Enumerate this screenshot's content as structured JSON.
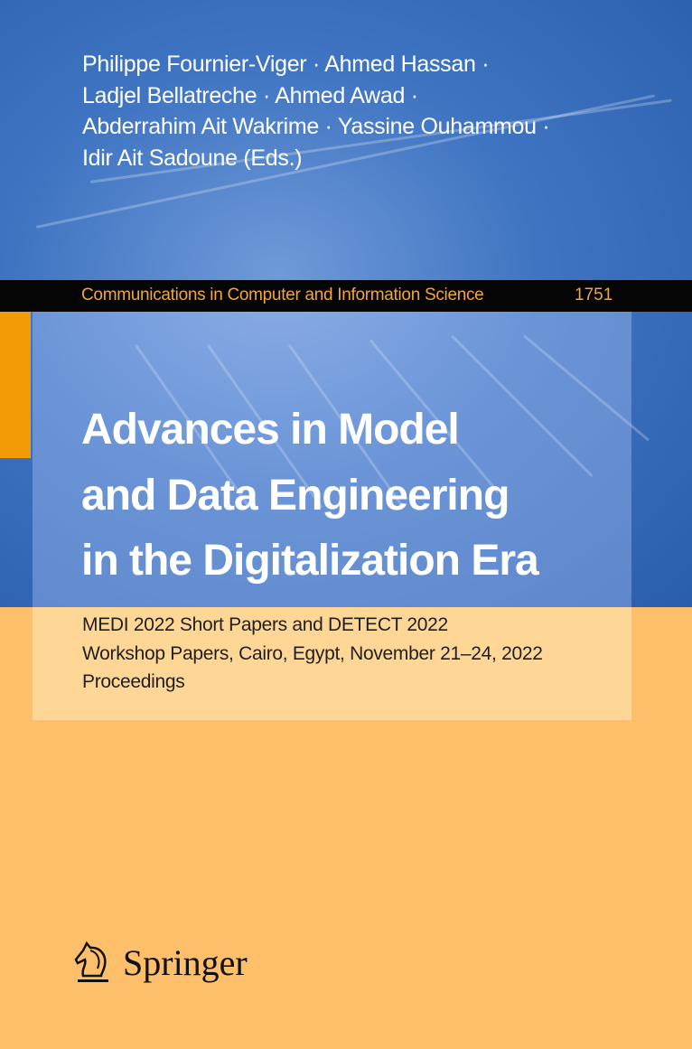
{
  "authors": [
    "Philippe Fournier-Viger · Ahmed Hassan ·",
    "Ladjel Bellatreche · Ahmed Awad ·",
    "Abderrahim Ait Wakrime · Yassine Ouhammou ·",
    "Idir Ait Sadoune (Eds.)"
  ],
  "series": {
    "name": "Communications in Computer and Information Science",
    "volume": "1751"
  },
  "title": [
    "Advances in Model",
    "and Data Engineering",
    "in the Digitalization Era"
  ],
  "subtitle": [
    "MEDI 2022 Short Papers and DETECT 2022",
    "Workshop Papers, Cairo, Egypt, November 21–24, 2022",
    "Proceedings"
  ],
  "publisher": {
    "name": "Springer",
    "icon": "springer-horse-icon"
  },
  "colors": {
    "blue": "#3f74c2",
    "orange": "#fdbf6a",
    "accent_strip": "#f29b07",
    "band": "#050505",
    "series_text": "#f2a63a"
  }
}
